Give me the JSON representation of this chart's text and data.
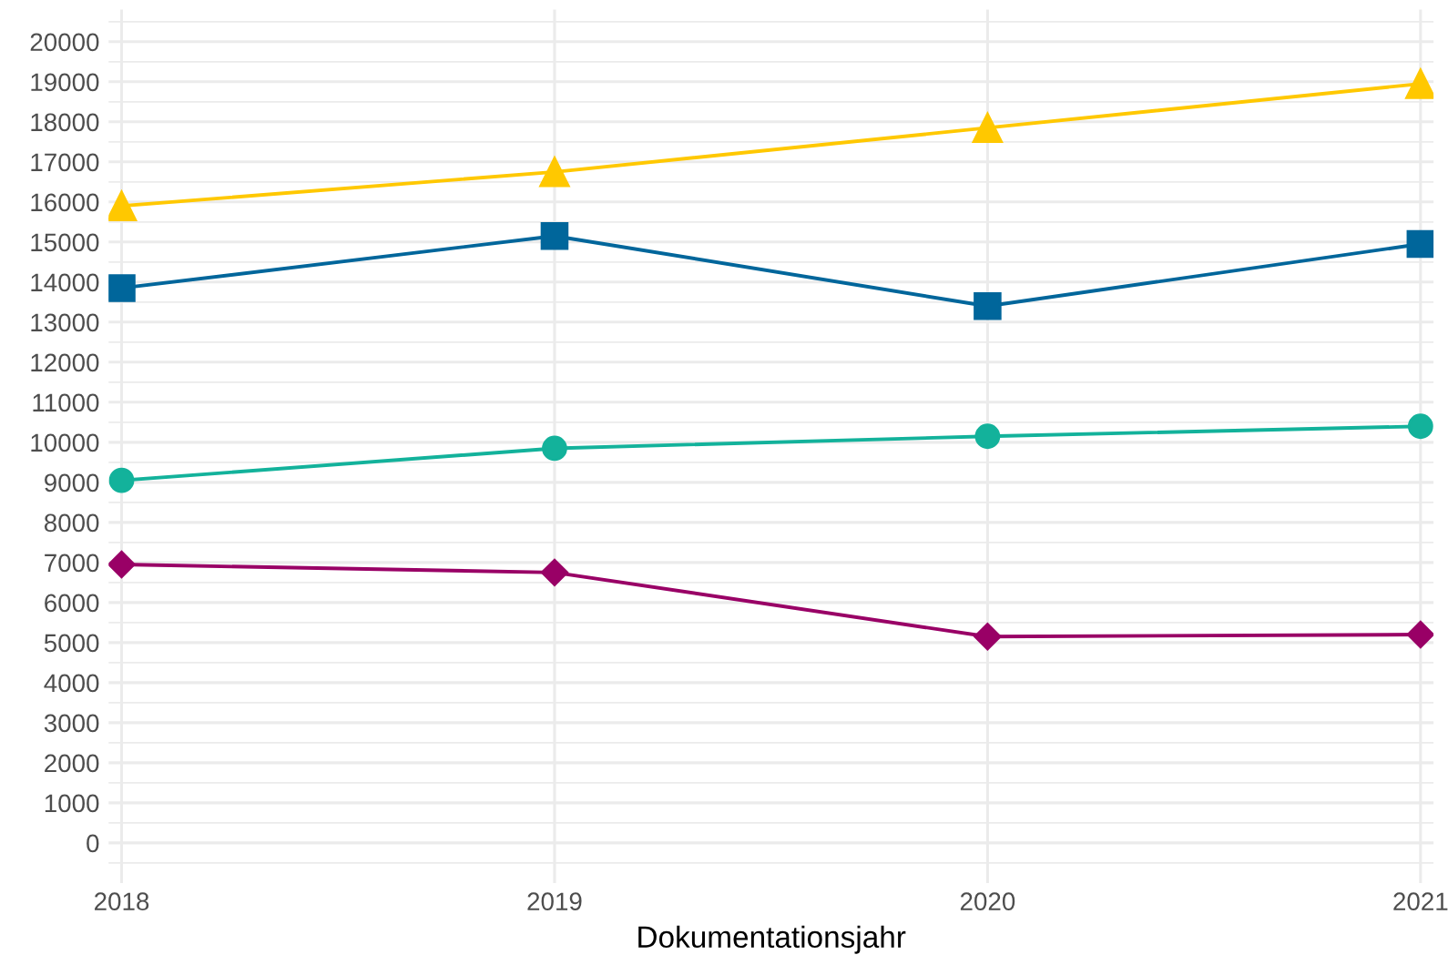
{
  "chart_data": {
    "type": "line",
    "xlabel": "Dokumentationsjahr",
    "x": [
      2018,
      2019,
      2020,
      2021
    ],
    "series": [
      {
        "color": "#ffc800",
        "marker": "triangle",
        "values": [
          15900,
          16750,
          17850,
          18950
        ]
      },
      {
        "color": "#00669b",
        "marker": "square",
        "values": [
          13850,
          15150,
          13400,
          14950
        ]
      },
      {
        "color": "#13b29b",
        "marker": "circle",
        "values": [
          9050,
          9850,
          10150,
          10400
        ]
      },
      {
        "color": "#990066",
        "marker": "diamond",
        "values": [
          6950,
          6750,
          5150,
          5200
        ]
      }
    ],
    "xlim": [
      2017.97,
      2021.03
    ],
    "xticks": [
      2018,
      2019,
      2020,
      2021
    ],
    "ylim": [
      -1000,
      20800
    ],
    "yticks": [
      0,
      1000,
      2000,
      3000,
      4000,
      5000,
      6000,
      7000,
      8000,
      9000,
      10000,
      11000,
      12000,
      13000,
      14000,
      15000,
      16000,
      17000,
      18000,
      19000,
      20000
    ],
    "grid": true
  }
}
